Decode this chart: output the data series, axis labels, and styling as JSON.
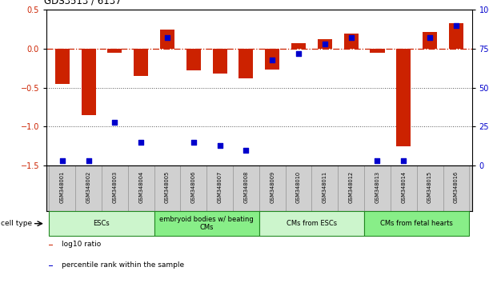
{
  "title": "GDS3513 / 6137",
  "samples": [
    "GSM348001",
    "GSM348002",
    "GSM348003",
    "GSM348004",
    "GSM348005",
    "GSM348006",
    "GSM348007",
    "GSM348008",
    "GSM348009",
    "GSM348010",
    "GSM348011",
    "GSM348012",
    "GSM348013",
    "GSM348014",
    "GSM348015",
    "GSM348016"
  ],
  "log10_ratio": [
    -0.45,
    -0.85,
    -0.05,
    -0.35,
    0.25,
    -0.28,
    -0.32,
    -0.38,
    -0.27,
    0.07,
    0.12,
    0.2,
    -0.05,
    -1.25,
    0.22,
    0.33
  ],
  "percentile_rank": [
    3,
    3,
    28,
    15,
    82,
    15,
    13,
    10,
    68,
    72,
    78,
    82,
    3,
    3,
    82,
    90
  ],
  "ylim_left": [
    -1.5,
    0.5
  ],
  "ylim_right": [
    0,
    100
  ],
  "yticks_left": [
    -1.5,
    -1.0,
    -0.5,
    0.0,
    0.5
  ],
  "yticks_right": [
    0,
    25,
    50,
    75,
    100
  ],
  "ytick_labels_right": [
    "0",
    "25",
    "50",
    "75",
    "100%"
  ],
  "bar_color": "#cc2200",
  "scatter_color": "#0000cc",
  "zero_line_color": "#cc2200",
  "dotted_line_color": "#555555",
  "cell_type_groups": [
    {
      "label": "ESCs",
      "start": 0,
      "end": 3,
      "color": "#ccf5cc"
    },
    {
      "label": "embryoid bodies w/ beating\nCMs",
      "start": 4,
      "end": 7,
      "color": "#88ee88"
    },
    {
      "label": "CMs from ESCs",
      "start": 8,
      "end": 11,
      "color": "#ccf5cc"
    },
    {
      "label": "CMs from fetal hearts",
      "start": 12,
      "end": 15,
      "color": "#88ee88"
    }
  ],
  "legend_items": [
    {
      "label": "log10 ratio",
      "color": "#cc2200"
    },
    {
      "label": "percentile rank within the sample",
      "color": "#0000cc"
    }
  ],
  "background_color": "#ffffff",
  "left_ytick_color": "#cc2200",
  "right_ytick_color": "#0000cc",
  "sample_box_color": "#d0d0d0",
  "sample_box_edge": "#999999"
}
